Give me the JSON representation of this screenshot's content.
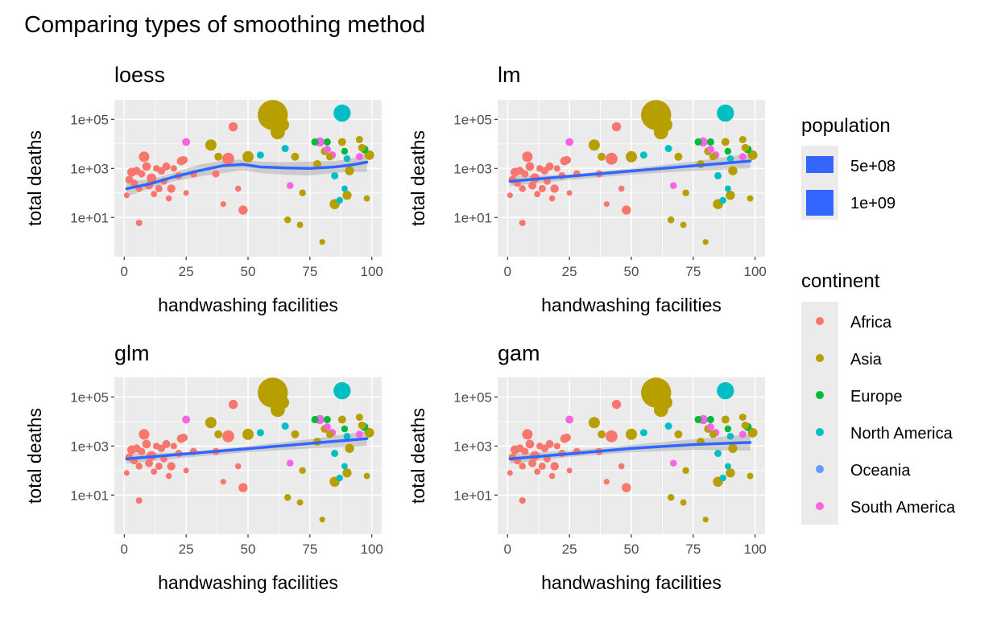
{
  "title": "Comparing types of smoothing method",
  "chart_data": {
    "type": "scatter",
    "title": "Comparing types of smoothing method",
    "xlabel": "handwashing facilities",
    "ylabel": "total deaths",
    "xlim": [
      -4,
      104
    ],
    "ylim_log10": [
      -0.6,
      5.8
    ],
    "y_scale": "log10",
    "x_ticks": [
      0,
      25,
      50,
      75,
      100
    ],
    "x_tick_labels": [
      "0",
      "25",
      "50",
      "75",
      "100"
    ],
    "y_ticks": [
      10,
      1000,
      100000
    ],
    "y_tick_labels": [
      "1e+01",
      "1e+03",
      "1e+05"
    ],
    "grid": true,
    "panel_background": "#ebebeb",
    "colors": {
      "Africa": "#F8766D",
      "Asia": "#B79F00",
      "Europe": "#00BA38",
      "North America": "#00BFC4",
      "Oceania": "#619CFF",
      "South America": "#F564E3",
      "smooth": "#3366FF",
      "ribbon": "#999999"
    },
    "points": [
      {
        "x": 1,
        "y": 80,
        "continent": "Africa",
        "pop": 5
      },
      {
        "x": 2,
        "y": 350,
        "continent": "Africa",
        "pop": 25
      },
      {
        "x": 3,
        "y": 700,
        "continent": "Africa",
        "pop": 45
      },
      {
        "x": 4,
        "y": 250,
        "continent": "Africa",
        "pop": 20
      },
      {
        "x": 5,
        "y": 800,
        "continent": "Africa",
        "pop": 30
      },
      {
        "x": 6,
        "y": 6,
        "continent": "Africa",
        "pop": 12
      },
      {
        "x": 6,
        "y": 150,
        "continent": "Africa",
        "pop": 15
      },
      {
        "x": 7,
        "y": 600,
        "continent": "Africa",
        "pop": 20
      },
      {
        "x": 8,
        "y": 3000,
        "continent": "Africa",
        "pop": 80
      },
      {
        "x": 9,
        "y": 1200,
        "continent": "Africa",
        "pop": 40
      },
      {
        "x": 10,
        "y": 200,
        "continent": "Africa",
        "pop": 30
      },
      {
        "x": 11,
        "y": 400,
        "continent": "Africa",
        "pop": 60
      },
      {
        "x": 12,
        "y": 90,
        "continent": "Africa",
        "pop": 10
      },
      {
        "x": 13,
        "y": 1000,
        "continent": "Africa",
        "pop": 15
      },
      {
        "x": 14,
        "y": 150,
        "continent": "Africa",
        "pop": 20
      },
      {
        "x": 15,
        "y": 800,
        "continent": "Africa",
        "pop": 25
      },
      {
        "x": 16,
        "y": 300,
        "continent": "Africa",
        "pop": 18
      },
      {
        "x": 17,
        "y": 1200,
        "continent": "Africa",
        "pop": 30
      },
      {
        "x": 18,
        "y": 60,
        "continent": "Africa",
        "pop": 8
      },
      {
        "x": 19,
        "y": 150,
        "continent": "Africa",
        "pop": 35
      },
      {
        "x": 20,
        "y": 1000,
        "continent": "Africa",
        "pop": 12
      },
      {
        "x": 22,
        "y": 500,
        "continent": "Africa",
        "pop": 20
      },
      {
        "x": 23,
        "y": 2000,
        "continent": "Africa",
        "pop": 40
      },
      {
        "x": 24,
        "y": 2200,
        "continent": "Africa",
        "pop": 30
      },
      {
        "x": 25,
        "y": 100,
        "continent": "Africa",
        "pop": 5
      },
      {
        "x": 28,
        "y": 600,
        "continent": "Africa",
        "pop": 20
      },
      {
        "x": 37,
        "y": 600,
        "continent": "Africa",
        "pop": 20
      },
      {
        "x": 40,
        "y": 35,
        "continent": "Africa",
        "pop": 6
      },
      {
        "x": 42,
        "y": 2500,
        "continent": "Africa",
        "pop": 120
      },
      {
        "x": 44,
        "y": 50000,
        "continent": "Africa",
        "pop": 50
      },
      {
        "x": 46,
        "y": 150,
        "continent": "Africa",
        "pop": 8
      },
      {
        "x": 48,
        "y": 20,
        "continent": "Africa",
        "pop": 50
      },
      {
        "x": 35,
        "y": 9000,
        "continent": "Asia",
        "pop": 100
      },
      {
        "x": 38,
        "y": 3000,
        "continent": "Asia",
        "pop": 30
      },
      {
        "x": 50,
        "y": 3000,
        "continent": "Asia",
        "pop": 100
      },
      {
        "x": 60,
        "y": 150000,
        "continent": "Asia",
        "pop": 1300
      },
      {
        "x": 62,
        "y": 30000,
        "continent": "Asia",
        "pop": 200
      },
      {
        "x": 64,
        "y": 60000,
        "continent": "Asia",
        "pop": 150
      },
      {
        "x": 66,
        "y": 8,
        "continent": "Asia",
        "pop": 15
      },
      {
        "x": 69,
        "y": 3000,
        "continent": "Asia",
        "pop": 30
      },
      {
        "x": 71,
        "y": 5,
        "continent": "Asia",
        "pop": 10
      },
      {
        "x": 72,
        "y": 100,
        "continent": "Asia",
        "pop": 15
      },
      {
        "x": 78,
        "y": 1500,
        "continent": "Asia",
        "pop": 30
      },
      {
        "x": 80,
        "y": 1,
        "continent": "Asia",
        "pop": 6
      },
      {
        "x": 81,
        "y": 5000,
        "continent": "Asia",
        "pop": 30
      },
      {
        "x": 83,
        "y": 3000,
        "continent": "Asia",
        "pop": 20
      },
      {
        "x": 85,
        "y": 35,
        "continent": "Asia",
        "pop": 70
      },
      {
        "x": 88,
        "y": 12000,
        "continent": "Asia",
        "pop": 30
      },
      {
        "x": 90,
        "y": 80,
        "continent": "Asia",
        "pop": 50
      },
      {
        "x": 91,
        "y": 800,
        "continent": "Asia",
        "pop": 50
      },
      {
        "x": 95,
        "y": 15000,
        "continent": "Asia",
        "pop": 20
      },
      {
        "x": 96,
        "y": 7000,
        "continent": "Asia",
        "pop": 25
      },
      {
        "x": 98,
        "y": 60,
        "continent": "Asia",
        "pop": 10
      },
      {
        "x": 99,
        "y": 3500,
        "continent": "Asia",
        "pop": 60
      },
      {
        "x": 77,
        "y": 12000,
        "continent": "Europe",
        "pop": 20
      },
      {
        "x": 82,
        "y": 12000,
        "continent": "Europe",
        "pop": 20
      },
      {
        "x": 89,
        "y": 5000,
        "continent": "Europe",
        "pop": 15
      },
      {
        "x": 97,
        "y": 6000,
        "continent": "Europe",
        "pop": 30
      },
      {
        "x": 55,
        "y": 3500,
        "continent": "North America",
        "pop": 20
      },
      {
        "x": 65,
        "y": 6500,
        "continent": "North America",
        "pop": 20
      },
      {
        "x": 85,
        "y": 500,
        "continent": "North America",
        "pop": 20
      },
      {
        "x": 87,
        "y": 50,
        "continent": "North America",
        "pop": 15
      },
      {
        "x": 88,
        "y": 180000,
        "continent": "North America",
        "pop": 330
      },
      {
        "x": 89,
        "y": 150,
        "continent": "North America",
        "pop": 10
      },
      {
        "x": 90,
        "y": 2500,
        "continent": "North America",
        "pop": 15
      },
      {
        "x": 25,
        "y": 12000,
        "continent": "South America",
        "pop": 30
      },
      {
        "x": 67,
        "y": 200,
        "continent": "South America",
        "pop": 15
      },
      {
        "x": 79,
        "y": 12000,
        "continent": "South America",
        "pop": 50
      },
      {
        "x": 82,
        "y": 6000,
        "continent": "South America",
        "pop": 20
      },
      {
        "x": 84,
        "y": 3500,
        "continent": "South America",
        "pop": 25
      },
      {
        "x": 95,
        "y": 3000,
        "continent": "South America",
        "pop": 20
      }
    ],
    "panels": [
      {
        "title": "loess",
        "smooth": [
          [
            1,
            150
          ],
          [
            10,
            230
          ],
          [
            20,
            450
          ],
          [
            30,
            800
          ],
          [
            40,
            1300
          ],
          [
            48,
            1450
          ],
          [
            55,
            1150
          ],
          [
            65,
            1050
          ],
          [
            75,
            1000
          ],
          [
            85,
            1150
          ],
          [
            92,
            1400
          ],
          [
            98,
            1800
          ]
        ],
        "ribbon_upper": [
          [
            1,
            300
          ],
          [
            10,
            340
          ],
          [
            20,
            650
          ],
          [
            30,
            1400
          ],
          [
            40,
            2100
          ],
          [
            48,
            2300
          ],
          [
            55,
            1900
          ],
          [
            65,
            1800
          ],
          [
            75,
            1900
          ],
          [
            85,
            2000
          ],
          [
            92,
            2500
          ],
          [
            98,
            4500
          ]
        ],
        "ribbon_lower": [
          [
            1,
            70
          ],
          [
            10,
            150
          ],
          [
            20,
            300
          ],
          [
            30,
            460
          ],
          [
            40,
            650
          ],
          [
            48,
            850
          ],
          [
            55,
            650
          ],
          [
            65,
            560
          ],
          [
            75,
            520
          ],
          [
            85,
            650
          ],
          [
            92,
            750
          ],
          [
            98,
            700
          ]
        ]
      },
      {
        "title": "lm",
        "smooth": [
          [
            1,
            300
          ],
          [
            98,
            2000
          ]
        ],
        "ribbon_upper": [
          [
            1,
            480
          ],
          [
            25,
            560
          ],
          [
            50,
            1000
          ],
          [
            75,
            1900
          ],
          [
            98,
            4000
          ]
        ],
        "ribbon_lower": [
          [
            1,
            190
          ],
          [
            25,
            340
          ],
          [
            50,
            560
          ],
          [
            75,
            800
          ],
          [
            98,
            1000
          ]
        ]
      },
      {
        "title": "glm",
        "smooth": [
          [
            1,
            300
          ],
          [
            98,
            2000
          ]
        ],
        "ribbon_upper": [
          [
            1,
            480
          ],
          [
            25,
            560
          ],
          [
            50,
            1000
          ],
          [
            75,
            1900
          ],
          [
            98,
            4000
          ]
        ],
        "ribbon_lower": [
          [
            1,
            190
          ],
          [
            25,
            340
          ],
          [
            50,
            560
          ],
          [
            75,
            800
          ],
          [
            98,
            1000
          ]
        ]
      },
      {
        "title": "gam",
        "smooth": [
          [
            1,
            300
          ],
          [
            25,
            480
          ],
          [
            50,
            800
          ],
          [
            75,
            1150
          ],
          [
            98,
            1400
          ]
        ],
        "ribbon_upper": [
          [
            1,
            480
          ],
          [
            25,
            640
          ],
          [
            50,
            1100
          ],
          [
            75,
            1900
          ],
          [
            98,
            3000
          ]
        ],
        "ribbon_lower": [
          [
            1,
            190
          ],
          [
            25,
            360
          ],
          [
            50,
            560
          ],
          [
            75,
            700
          ],
          [
            98,
            650
          ]
        ]
      }
    ]
  },
  "legend": {
    "population_title": "population",
    "population_items": [
      {
        "label": "5e+08",
        "value": 500
      },
      {
        "label": "1e+09",
        "value": 1000
      }
    ],
    "continent_title": "continent",
    "continent_items": [
      {
        "label": "Africa",
        "color": "#F8766D"
      },
      {
        "label": "Asia",
        "color": "#B79F00"
      },
      {
        "label": "Europe",
        "color": "#00BA38"
      },
      {
        "label": "North America",
        "color": "#00BFC4"
      },
      {
        "label": "Oceania",
        "color": "#619CFF"
      },
      {
        "label": "South America",
        "color": "#F564E3"
      }
    ]
  }
}
